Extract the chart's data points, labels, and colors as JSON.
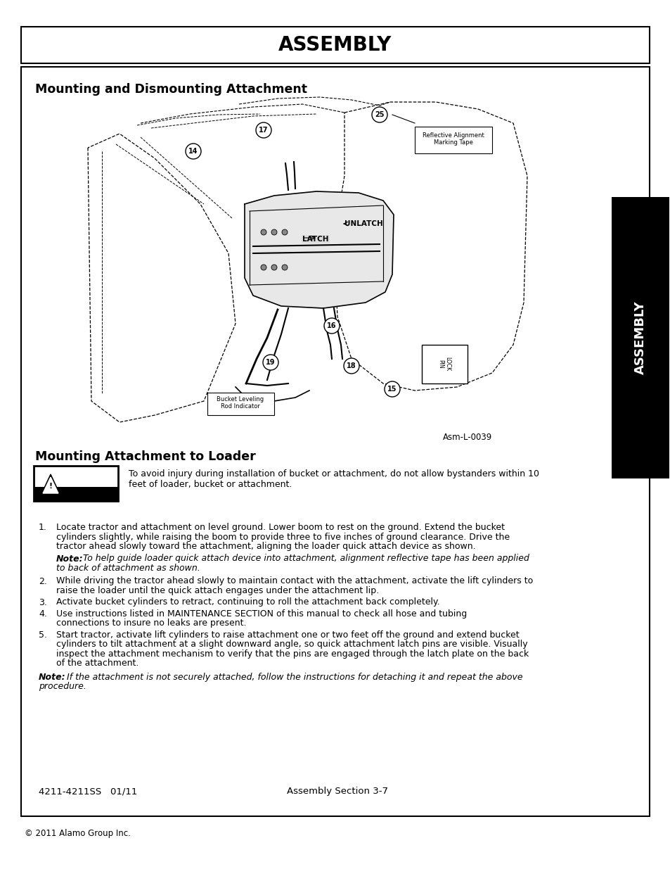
{
  "page_bg": "#ffffff",
  "header_title": "ASSEMBLY",
  "section1_title": "Mounting and Dismounting Attachment",
  "section2_title": "Mounting Attachment to Loader",
  "warning_line1": "To avoid injury during installation of bucket or attachment, do not allow bystanders within 10",
  "warning_line2": "feet of loader, bucket or attachment.",
  "asm_label": "Asm-L-0039",
  "footer_left": "4211-4211SS   01/11",
  "footer_center": "Assembly Section 3-7",
  "copyright": "© 2011 Alamo Group Inc.",
  "sidebar_text": "ASSEMBLY",
  "text_color": "#000000"
}
